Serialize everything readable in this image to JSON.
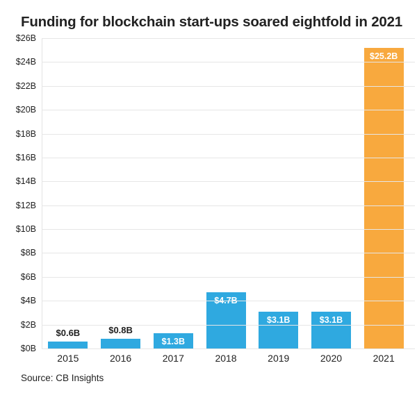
{
  "title": "Funding for blockchain start-ups soared eightfold in 2021",
  "source_note": "Source: CB Insights",
  "colors": {
    "bar_default": "#2fa9e0",
    "bar_highlight": "#f8a93e",
    "grid": "#e6e6e6",
    "title_text": "#222222",
    "axis_text": "#1f1f1f",
    "label_inside": "#ffffff",
    "label_above": "#1f1f1f",
    "background": "#ffffff"
  },
  "chart_data": {
    "type": "bar",
    "title": "Funding for blockchain start-ups soared eightfold in 2021",
    "categories": [
      "2015",
      "2016",
      "2017",
      "2018",
      "2019",
      "2020",
      "2021"
    ],
    "values": [
      0.6,
      0.8,
      1.3,
      4.7,
      3.1,
      3.1,
      25.2
    ],
    "bar_labels": [
      "$0.6B",
      "$0.8B",
      "$1.3B",
      "$4.7B",
      "$3.1B",
      "$3.1B",
      "$25.2B"
    ],
    "label_positions": [
      "above",
      "above",
      "inside",
      "inside",
      "inside",
      "inside",
      "inside"
    ],
    "highlight_index": 6,
    "xlabel": "",
    "ylabel": "",
    "ylim": [
      0,
      26
    ],
    "ytick_step": 2,
    "ytick_labels": [
      "$0B",
      "$2B",
      "$4B",
      "$6B",
      "$8B",
      "$10B",
      "$12B",
      "$14B",
      "$16B",
      "$18B",
      "$20B",
      "$22B",
      "$24B",
      "$26B"
    ],
    "grid": true,
    "legend": "none",
    "source": "Source: CB Insights"
  }
}
